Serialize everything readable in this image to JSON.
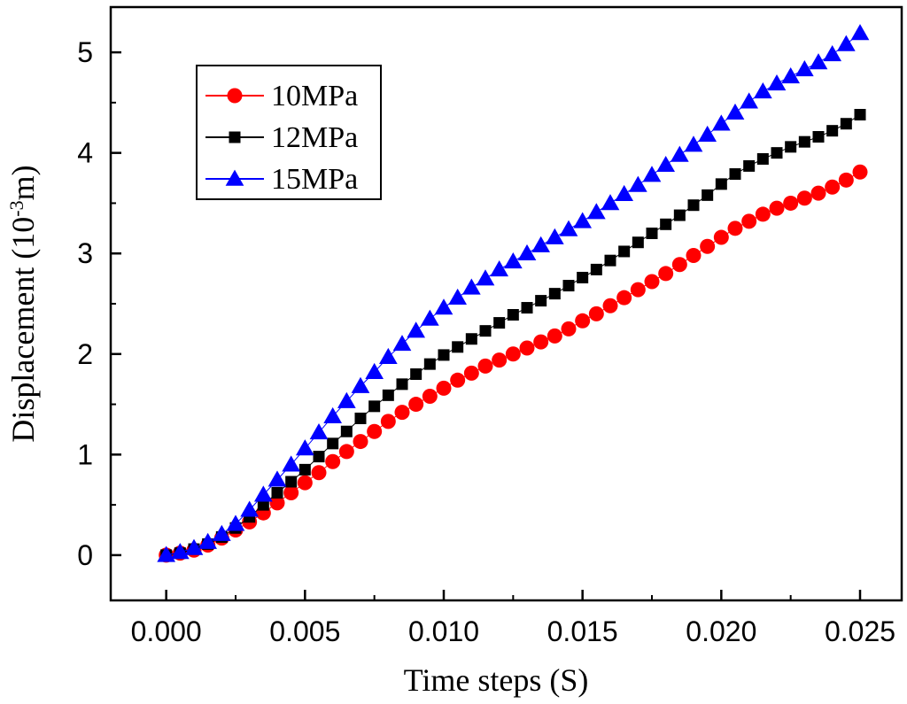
{
  "chart_data": {
    "type": "scatter",
    "xlabel": "Time steps (S)",
    "ylabel_main": "Displacement (10",
    "ylabel_exp": "-3",
    "ylabel_tail": "m)",
    "xlim": [
      -0.002,
      0.0265
    ],
    "ylim": [
      -0.45,
      5.45
    ],
    "x_ticks": [
      0.0,
      0.005,
      0.01,
      0.015,
      0.02,
      0.025
    ],
    "x_tick_labels": [
      "0.000",
      "0.005",
      "0.010",
      "0.015",
      "0.020",
      "0.025"
    ],
    "y_ticks": [
      0,
      1,
      2,
      3,
      4,
      5
    ],
    "y_tick_labels": [
      "0",
      "1",
      "2",
      "3",
      "4",
      "5"
    ],
    "legend_position": "top-left",
    "x": [
      0.0,
      0.0005,
      0.001,
      0.0015,
      0.002,
      0.0025,
      0.003,
      0.0035,
      0.004,
      0.0045,
      0.005,
      0.0055,
      0.006,
      0.0065,
      0.007,
      0.0075,
      0.008,
      0.0085,
      0.009,
      0.0095,
      0.01,
      0.0105,
      0.011,
      0.0115,
      0.012,
      0.0125,
      0.013,
      0.0135,
      0.014,
      0.0145,
      0.015,
      0.0155,
      0.016,
      0.0165,
      0.017,
      0.0175,
      0.018,
      0.0185,
      0.019,
      0.0195,
      0.02,
      0.0205,
      0.021,
      0.0215,
      0.022,
      0.0225,
      0.023,
      0.0235,
      0.024,
      0.0245,
      0.025
    ],
    "series": [
      {
        "name": "10MPa",
        "color": "#ff0000",
        "marker": "circle",
        "values": [
          0.0,
          0.02,
          0.05,
          0.1,
          0.17,
          0.25,
          0.33,
          0.42,
          0.52,
          0.62,
          0.72,
          0.82,
          0.93,
          1.03,
          1.13,
          1.23,
          1.33,
          1.42,
          1.5,
          1.58,
          1.66,
          1.74,
          1.81,
          1.88,
          1.94,
          2.0,
          2.06,
          2.12,
          2.18,
          2.25,
          2.33,
          2.4,
          2.48,
          2.56,
          2.64,
          2.72,
          2.8,
          2.89,
          2.98,
          3.07,
          3.16,
          3.25,
          3.32,
          3.39,
          3.45,
          3.5,
          3.55,
          3.6,
          3.66,
          3.73,
          3.81
        ]
      },
      {
        "name": "12MPa",
        "color": "#000000",
        "marker": "square",
        "values": [
          0.0,
          0.02,
          0.06,
          0.11,
          0.18,
          0.27,
          0.38,
          0.5,
          0.62,
          0.73,
          0.85,
          0.98,
          1.11,
          1.23,
          1.36,
          1.48,
          1.59,
          1.7,
          1.8,
          1.9,
          1.99,
          2.07,
          2.15,
          2.23,
          2.31,
          2.39,
          2.46,
          2.53,
          2.6,
          2.68,
          2.76,
          2.84,
          2.93,
          3.02,
          3.11,
          3.2,
          3.29,
          3.38,
          3.48,
          3.58,
          3.69,
          3.79,
          3.87,
          3.94,
          4.0,
          4.06,
          4.11,
          4.16,
          4.22,
          4.29,
          4.38
        ]
      },
      {
        "name": "15MPa",
        "color": "#0000ff",
        "marker": "triangle",
        "values": [
          0.0,
          0.03,
          0.07,
          0.13,
          0.21,
          0.31,
          0.45,
          0.6,
          0.75,
          0.9,
          1.06,
          1.22,
          1.38,
          1.53,
          1.68,
          1.82,
          1.97,
          2.1,
          2.23,
          2.35,
          2.46,
          2.56,
          2.66,
          2.75,
          2.84,
          2.92,
          3.0,
          3.08,
          3.16,
          3.24,
          3.32,
          3.41,
          3.5,
          3.59,
          3.68,
          3.78,
          3.88,
          3.98,
          4.08,
          4.18,
          4.29,
          4.4,
          4.51,
          4.61,
          4.69,
          4.76,
          4.83,
          4.9,
          4.98,
          5.08,
          5.19
        ]
      }
    ]
  }
}
